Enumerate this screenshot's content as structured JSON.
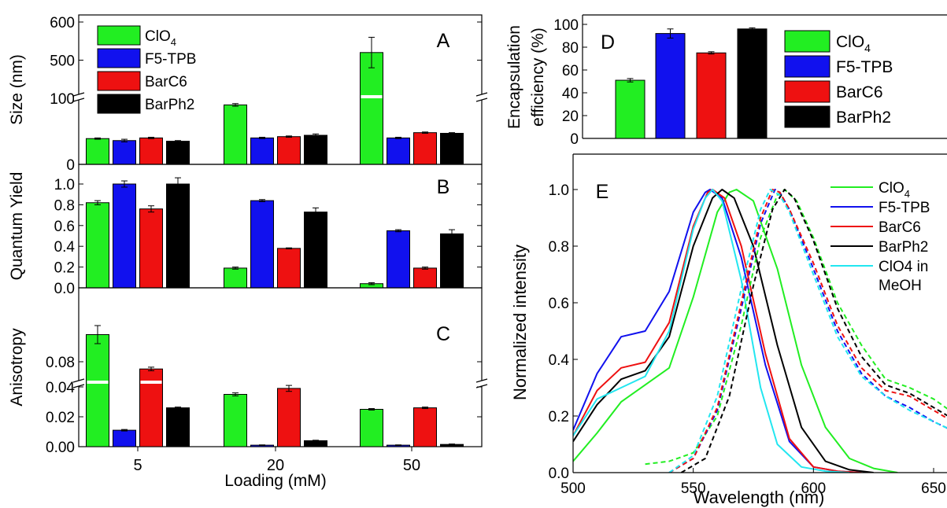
{
  "colors": {
    "ClO4": "#22ee22",
    "F5-TPB": "#1111ee",
    "BarC6": "#ee1111",
    "BarPh2": "#000000",
    "ClO4 in MeOH": "#22e6f0"
  },
  "chart_data": [
    {
      "panel": "A",
      "type": "bar",
      "ylabel": "Size (nm)",
      "xlabel": "",
      "categories": [
        "5",
        "20",
        "50"
      ],
      "axis_break": [
        100,
        400
      ],
      "ylim": [
        0,
        600
      ],
      "yticks": [
        "0",
        "100",
        "500",
        "600"
      ],
      "series": [
        {
          "name": "ClO",
          "sub": "4",
          "key": "ClO4",
          "values": [
            39,
            90,
            520
          ],
          "errors": [
            1,
            2,
            40
          ]
        },
        {
          "name": "F5-TPB",
          "key": "F5-TPB",
          "values": [
            36,
            40,
            40
          ],
          "errors": [
            2,
            1,
            1
          ]
        },
        {
          "name": "BarC6",
          "key": "BarC6",
          "values": [
            40,
            42,
            48
          ],
          "errors": [
            1,
            1,
            1
          ]
        },
        {
          "name": "BarPh2",
          "key": "BarPh2",
          "values": [
            35,
            44,
            47
          ],
          "errors": [
            1,
            2,
            1
          ]
        }
      ]
    },
    {
      "panel": "B",
      "type": "bar",
      "ylabel": "Quantum Yield",
      "xlabel": "",
      "categories": [
        "5",
        "20",
        "50"
      ],
      "ylim": [
        0,
        1.1
      ],
      "yticks": [
        "0.0",
        "0.2",
        "0.4",
        "0.6",
        "0.8",
        "1.0"
      ],
      "series": [
        {
          "key": "ClO4",
          "values": [
            0.82,
            0.19,
            0.04
          ],
          "errors": [
            0.02,
            0.01,
            0.01
          ]
        },
        {
          "key": "F5-TPB",
          "values": [
            1.0,
            0.84,
            0.55
          ],
          "errors": [
            0.03,
            0.01,
            0.01
          ]
        },
        {
          "key": "BarC6",
          "values": [
            0.76,
            0.38,
            0.19
          ],
          "errors": [
            0.03,
            0.005,
            0.01
          ]
        },
        {
          "key": "BarPh2",
          "values": [
            1.0,
            0.73,
            0.52
          ],
          "errors": [
            0.06,
            0.04,
            0.04
          ]
        }
      ]
    },
    {
      "panel": "C",
      "type": "bar",
      "ylabel": "Anisotropy",
      "xlabel": "Loading (mM)",
      "categories": [
        "5",
        "20",
        "50"
      ],
      "axis_break": [
        0.045,
        0.07
      ],
      "yticks": [
        "0.00",
        "0.02",
        "0.04",
        "0.08"
      ],
      "series": [
        {
          "key": "ClO4",
          "values": [
            0.095,
            0.035,
            0.025
          ],
          "errors": [
            0.005,
            0.001,
            0.0005
          ]
        },
        {
          "key": "F5-TPB",
          "values": [
            0.011,
            0.001,
            0.001
          ],
          "errors": [
            0.0005,
            0.0002,
            0.0002
          ]
        },
        {
          "key": "BarC6",
          "values": [
            0.076,
            0.039,
            0.026
          ],
          "errors": [
            0.001,
            0.002,
            0.0005
          ]
        },
        {
          "key": "BarPh2",
          "values": [
            0.026,
            0.004,
            0.0015
          ],
          "errors": [
            0.0005,
            0.0003,
            0.0003
          ]
        }
      ]
    },
    {
      "panel": "D",
      "type": "bar",
      "ylabel": "Encapsulation efficiency (%)",
      "ylabel_lines": [
        "Encapsulation",
        "efficiency (%)"
      ],
      "ylim": [
        0,
        110
      ],
      "yticks": [
        "0",
        "20",
        "40",
        "60",
        "80",
        "100"
      ],
      "series": [
        {
          "name": "ClO",
          "sub": "4",
          "key": "ClO4",
          "value": 51,
          "error": 1.5
        },
        {
          "name": "F5-TPB",
          "key": "F5-TPB",
          "value": 92,
          "error": 4
        },
        {
          "name": "BarC6",
          "key": "BarC6",
          "value": 75,
          "error": 1
        },
        {
          "name": "BarPh2",
          "key": "BarPh2",
          "value": 96,
          "error": 1
        }
      ]
    },
    {
      "panel": "E",
      "type": "line",
      "xlabel": "Wavelength (nm)",
      "ylabel": "Normalized intensity",
      "xlim": [
        500,
        675
      ],
      "ylim": [
        0,
        1.1
      ],
      "xticks": [
        "500",
        "550",
        "600",
        "650"
      ],
      "yticks": [
        "0.0",
        "0.2",
        "0.4",
        "0.6",
        "0.8",
        "1.0"
      ],
      "legend": [
        {
          "name": "ClO",
          "sub": "4",
          "key": "ClO4"
        },
        {
          "name": "F5-TPB",
          "key": "F5-TPB"
        },
        {
          "name": "BarC6",
          "key": "BarC6"
        },
        {
          "name": "BarPh2",
          "key": "BarPh2"
        },
        {
          "name": "ClO4 in",
          "name2": "MeOH",
          "key": "ClO4 in MeOH"
        }
      ],
      "series": [
        {
          "key": "ClO4",
          "kind": "absorption",
          "x": [
            500,
            510,
            520,
            530,
            540,
            550,
            560,
            565,
            568,
            575,
            585,
            595,
            605,
            615,
            625,
            635
          ],
          "y": [
            0.04,
            0.14,
            0.25,
            0.31,
            0.37,
            0.62,
            0.92,
            0.99,
            1.0,
            0.96,
            0.72,
            0.38,
            0.16,
            0.05,
            0.015,
            0.0
          ]
        },
        {
          "key": "F5-TPB",
          "kind": "absorption",
          "x": [
            500,
            510,
            520,
            525,
            530,
            540,
            550,
            555,
            557,
            562,
            570,
            580,
            590,
            600,
            610,
            620
          ],
          "y": [
            0.15,
            0.35,
            0.48,
            0.49,
            0.5,
            0.64,
            0.92,
            0.99,
            1.0,
            0.97,
            0.76,
            0.38,
            0.11,
            0.02,
            0.005,
            0.0
          ]
        },
        {
          "key": "BarC6",
          "kind": "absorption",
          "x": [
            500,
            510,
            520,
            530,
            540,
            550,
            556,
            558,
            563,
            570,
            580,
            590,
            600,
            610,
            620
          ],
          "y": [
            0.13,
            0.29,
            0.37,
            0.39,
            0.53,
            0.87,
            0.99,
            1.0,
            0.97,
            0.8,
            0.42,
            0.12,
            0.02,
            0.005,
            0.0
          ]
        },
        {
          "key": "BarPh2",
          "kind": "absorption",
          "x": [
            500,
            510,
            520,
            530,
            540,
            550,
            558,
            562,
            567,
            575,
            585,
            595,
            605,
            615,
            625
          ],
          "y": [
            0.11,
            0.24,
            0.33,
            0.36,
            0.48,
            0.8,
            0.97,
            1.0,
            0.97,
            0.8,
            0.45,
            0.16,
            0.04,
            0.01,
            0.0
          ]
        },
        {
          "key": "ClO4 in MeOH",
          "kind": "absorption",
          "x": [
            500,
            510,
            520,
            530,
            540,
            550,
            555,
            558,
            562,
            570,
            578,
            585,
            595,
            605,
            615
          ],
          "y": [
            0.13,
            0.26,
            0.3,
            0.34,
            0.5,
            0.86,
            0.97,
            1.0,
            0.96,
            0.68,
            0.3,
            0.1,
            0.02,
            0.005,
            0.0
          ]
        },
        {
          "key": "ClO4",
          "kind": "emission",
          "x": [
            530,
            540,
            550,
            560,
            570,
            578,
            585,
            588,
            593,
            600,
            610,
            620,
            630,
            640,
            650,
            660,
            670,
            675
          ],
          "y": [
            0.03,
            0.04,
            0.07,
            0.2,
            0.52,
            0.83,
            0.98,
            1.0,
            0.96,
            0.83,
            0.6,
            0.45,
            0.33,
            0.3,
            0.26,
            0.2,
            0.18,
            0.16
          ]
        },
        {
          "key": "F5-TPB",
          "kind": "emission",
          "x": [
            540,
            550,
            560,
            570,
            578,
            584,
            586,
            590,
            600,
            610,
            620,
            630,
            640,
            650,
            660,
            670,
            675
          ],
          "y": [
            0.0,
            0.05,
            0.22,
            0.58,
            0.88,
            1.0,
            0.99,
            0.93,
            0.72,
            0.5,
            0.35,
            0.27,
            0.23,
            0.18,
            0.14,
            0.1,
            0.08
          ]
        },
        {
          "key": "BarC6",
          "kind": "emission",
          "x": [
            540,
            550,
            560,
            570,
            578,
            583,
            586,
            590,
            600,
            610,
            620,
            630,
            640,
            650,
            660,
            670,
            675
          ],
          "y": [
            0.0,
            0.05,
            0.23,
            0.6,
            0.9,
            1.0,
            0.99,
            0.93,
            0.74,
            0.52,
            0.37,
            0.29,
            0.27,
            0.22,
            0.17,
            0.12,
            0.1
          ]
        },
        {
          "key": "BarPh2",
          "kind": "emission",
          "x": [
            545,
            555,
            565,
            575,
            583,
            588,
            592,
            600,
            610,
            620,
            630,
            640,
            650,
            660,
            670,
            675
          ],
          "y": [
            0.0,
            0.05,
            0.27,
            0.66,
            0.93,
            1.0,
            0.97,
            0.82,
            0.58,
            0.41,
            0.31,
            0.28,
            0.23,
            0.18,
            0.13,
            0.11
          ]
        },
        {
          "key": "ClO4 in MeOH",
          "kind": "emission",
          "x": [
            540,
            550,
            560,
            570,
            578,
            582,
            586,
            590,
            600,
            610,
            620,
            630,
            640,
            650,
            660,
            670,
            675
          ],
          "y": [
            0.0,
            0.06,
            0.27,
            0.65,
            0.93,
            1.0,
            0.98,
            0.92,
            0.7,
            0.48,
            0.34,
            0.27,
            0.22,
            0.18,
            0.14,
            0.09,
            0.08
          ]
        }
      ]
    }
  ]
}
